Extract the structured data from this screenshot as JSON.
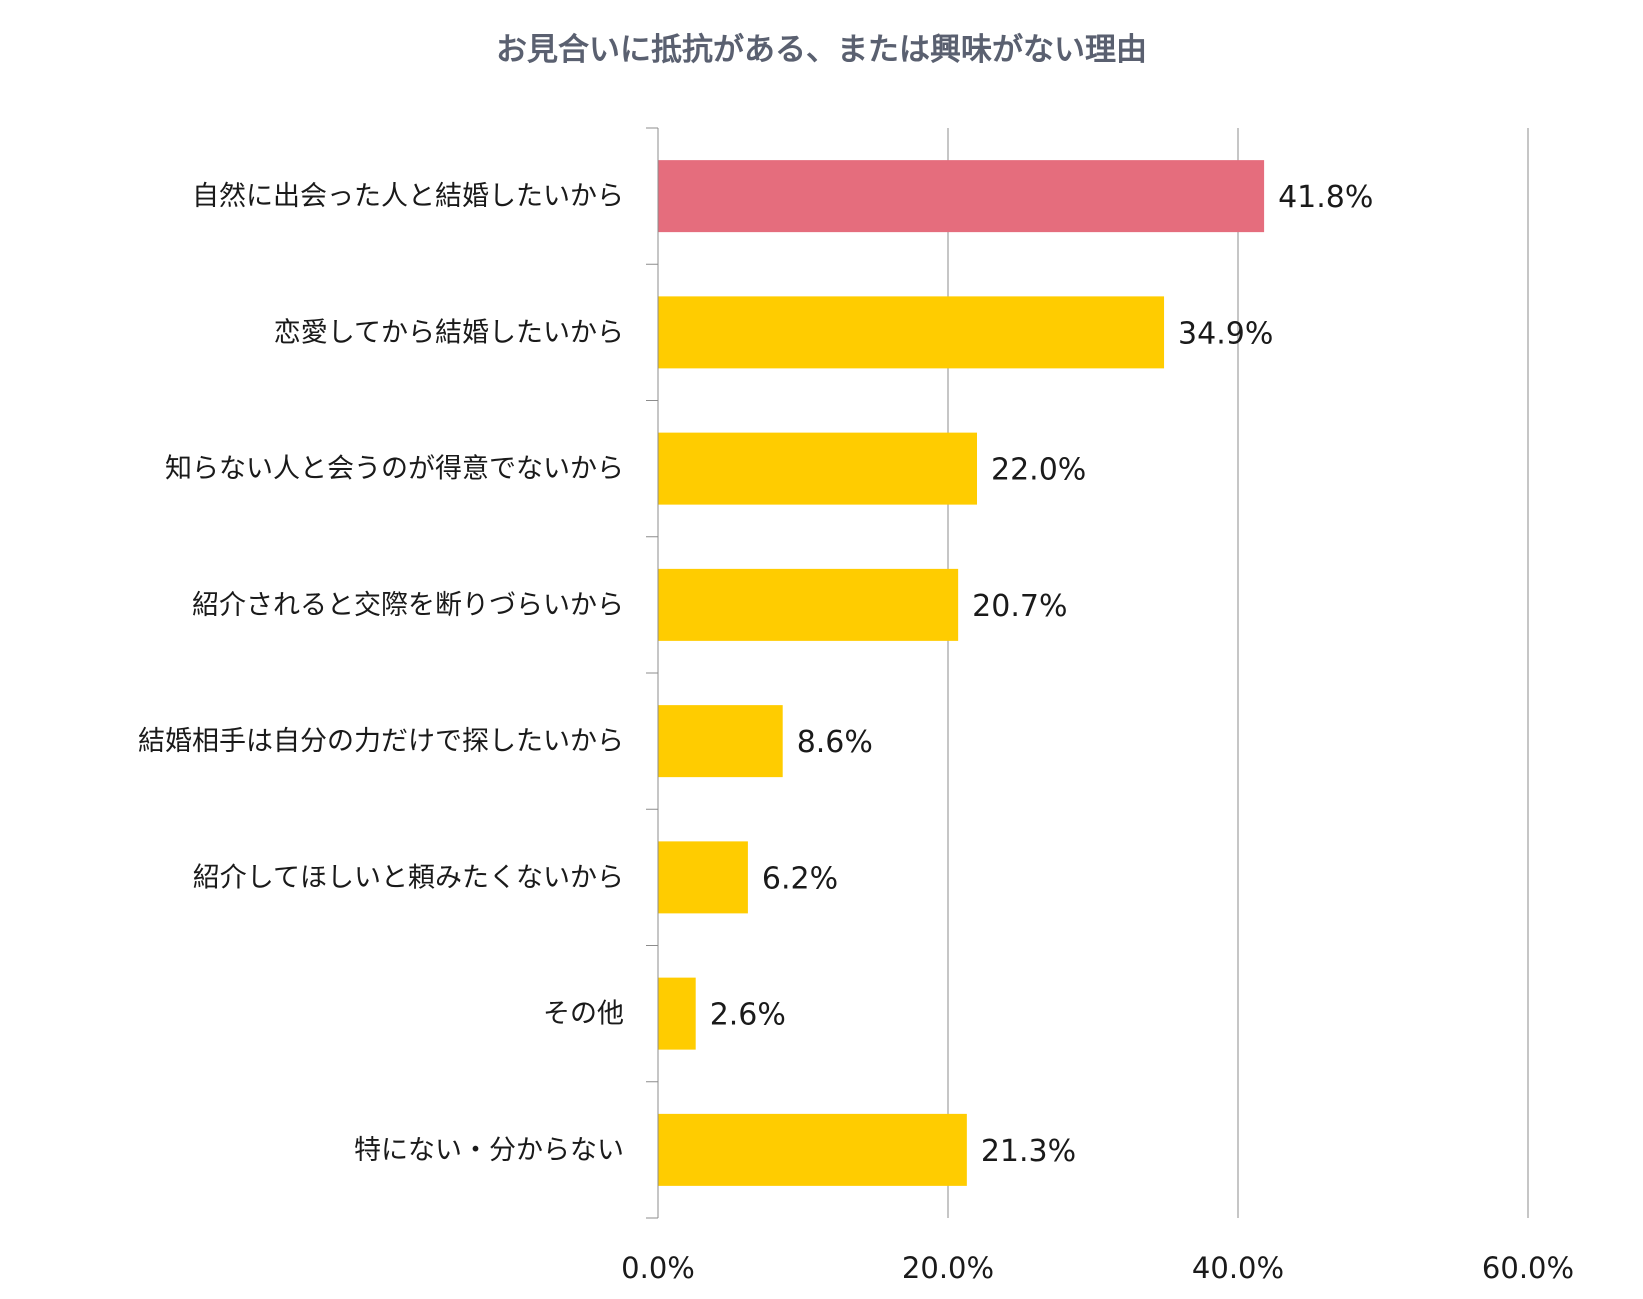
{
  "chart_data": {
    "type": "bar",
    "orientation": "horizontal",
    "title": "お見合いに抵抗がある、または興味がない理由",
    "categories": [
      "自然に出会った人と結婚したいから",
      "恋愛してから結婚したいから",
      "知らない人と会うのが得意でないから",
      "紹介されると交際を断りづらいから",
      "結婚相手は自分の力だけで探したいから",
      "紹介してほしいと頼みたくないから",
      "その他",
      "特にない・分からない"
    ],
    "values": [
      41.8,
      34.9,
      22.0,
      20.7,
      8.6,
      6.2,
      2.6,
      21.3
    ],
    "value_labels": [
      "41.8%",
      "34.9%",
      "22.0%",
      "20.7%",
      "8.6%",
      "6.2%",
      "2.6%",
      "21.3%"
    ],
    "xlim": [
      0,
      60
    ],
    "x_ticks": [
      0,
      20,
      40,
      60
    ],
    "x_tick_labels": [
      "0.0%",
      "20.0%",
      "40.0%",
      "60.0%"
    ],
    "grid": "vertical",
    "highlight_index": 0,
    "colors": {
      "highlight": "#e56d7d",
      "bar": "#ffcc00",
      "grid": "#8c8c8c",
      "axis": "#8c8c8c",
      "title": "#5a6070"
    }
  }
}
